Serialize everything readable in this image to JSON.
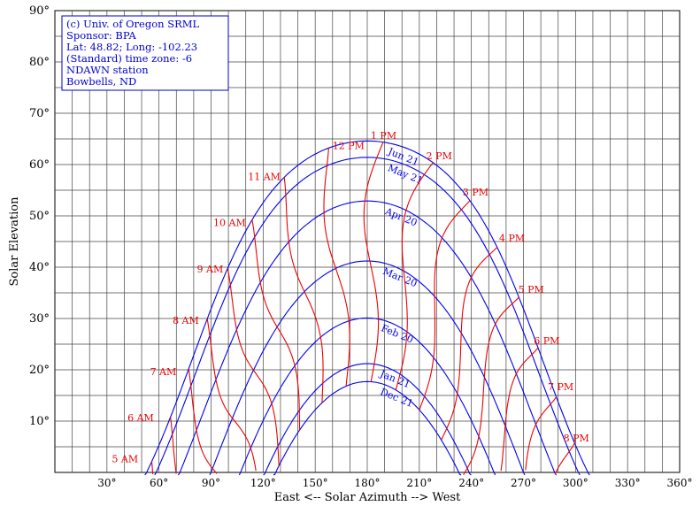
{
  "chart_data": {
    "type": "line",
    "xlabel": "East <-- Solar Azimuth --> West",
    "ylabel": "Solar Elevation",
    "xlim": [
      0,
      360
    ],
    "ylim": [
      0,
      90
    ],
    "x_ticks": [
      30,
      60,
      90,
      120,
      150,
      180,
      210,
      240,
      270,
      300,
      330,
      360
    ],
    "y_ticks": [
      10,
      20,
      30,
      40,
      50,
      60,
      70,
      80,
      90
    ],
    "x_tick_labels": [
      "30°",
      "60°",
      "90°",
      "120°",
      "150°",
      "180°",
      "210°",
      "240°",
      "270°",
      "300°",
      "330°",
      "360°"
    ],
    "y_tick_labels": [
      "10°",
      "20°",
      "30°",
      "40°",
      "50°",
      "60°",
      "70°",
      "80°",
      "90°"
    ],
    "grid": true,
    "info_box": [
      "(c) Univ. of Oregon SRML",
      "Sponsor: BPA",
      "Lat: 48.82; Long: -102.23",
      "(Standard) time zone: -6",
      "NDAWN station",
      "Bowbells, ND"
    ],
    "colors": {
      "date_lines": "#0000ee",
      "hour_lines": "#ee0000",
      "info_text": "#0000cc",
      "grid": "#444444"
    },
    "date_series": [
      {
        "name": "Jun 21",
        "peak": 64.6
      },
      {
        "name": "May 21",
        "peak": 61.4
      },
      {
        "name": "Apr 20",
        "peak": 52.9
      },
      {
        "name": "Mar 20",
        "peak": 41.2
      },
      {
        "name": "Feb 20",
        "peak": 30.1
      },
      {
        "name": "Jan 21",
        "peak": 21.2
      },
      {
        "name": "Dec 21",
        "peak": 17.7
      }
    ],
    "hour_series": [
      {
        "name": "5 AM",
        "label_at": [
          48,
          2
        ]
      },
      {
        "name": "6 AM",
        "label_at": [
          57,
          10
        ]
      },
      {
        "name": "7 AM",
        "label_at": [
          70,
          19
        ]
      },
      {
        "name": "8 AM",
        "label_at": [
          83,
          29
        ]
      },
      {
        "name": "9 AM",
        "label_at": [
          97,
          39
        ]
      },
      {
        "name": "10 AM",
        "label_at": [
          110,
          48
        ]
      },
      {
        "name": "11 AM",
        "label_at": [
          130,
          57
        ]
      },
      {
        "name": "12 PM",
        "label_at": [
          160,
          63
        ]
      },
      {
        "name": "1 PM",
        "label_at": [
          182,
          65
        ]
      },
      {
        "name": "2 PM",
        "label_at": [
          214,
          61
        ]
      },
      {
        "name": "3 PM",
        "label_at": [
          235,
          54
        ]
      },
      {
        "name": "4 PM",
        "label_at": [
          256,
          45
        ]
      },
      {
        "name": "5 PM",
        "label_at": [
          267,
          35
        ]
      },
      {
        "name": "6 PM",
        "label_at": [
          276,
          25
        ]
      },
      {
        "name": "7 PM",
        "label_at": [
          284,
          16
        ]
      },
      {
        "name": "8 PM",
        "label_at": [
          293,
          6
        ]
      }
    ]
  }
}
